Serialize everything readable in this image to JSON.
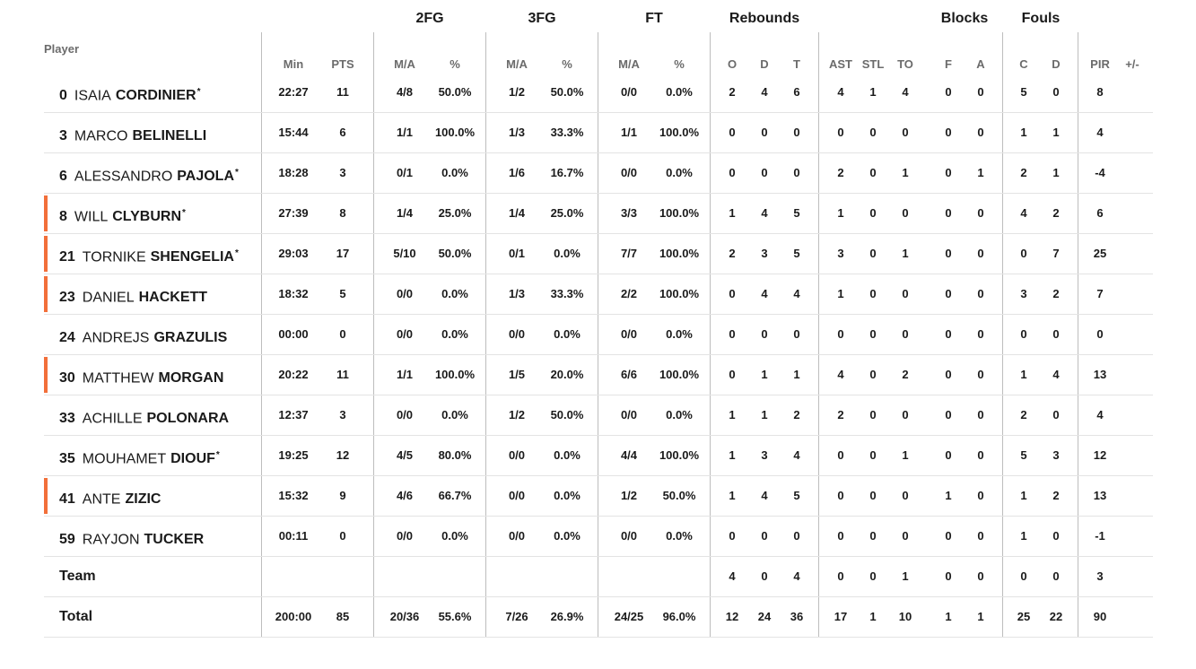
{
  "header": {
    "player_label": "Player",
    "groups": [
      "2FG",
      "3FG",
      "FT",
      "Rebounds",
      "Blocks",
      "Fouls"
    ],
    "columns": [
      "Min",
      "PTS",
      "M/A",
      "%",
      "M/A",
      "%",
      "M/A",
      "%",
      "O",
      "D",
      "T",
      "AST",
      "STL",
      "TO",
      "F",
      "A",
      "C",
      "D",
      "PIR",
      "+/-"
    ]
  },
  "players": [
    {
      "num": "0",
      "first": "ISAIA",
      "last": "CORDINIER",
      "star": "*",
      "marked": false,
      "stats": [
        "22:27",
        "11",
        "4/8",
        "50.0%",
        "1/2",
        "50.0%",
        "0/0",
        "0.0%",
        "2",
        "4",
        "6",
        "4",
        "1",
        "4",
        "0",
        "0",
        "5",
        "0",
        "8",
        ""
      ]
    },
    {
      "num": "3",
      "first": "MARCO",
      "last": "BELINELLI",
      "star": "",
      "marked": false,
      "stats": [
        "15:44",
        "6",
        "1/1",
        "100.0%",
        "1/3",
        "33.3%",
        "1/1",
        "100.0%",
        "0",
        "0",
        "0",
        "0",
        "0",
        "0",
        "0",
        "0",
        "1",
        "1",
        "4",
        ""
      ]
    },
    {
      "num": "6",
      "first": "ALESSANDRO",
      "last": "PAJOLA",
      "star": "*",
      "marked": false,
      "stats": [
        "18:28",
        "3",
        "0/1",
        "0.0%",
        "1/6",
        "16.7%",
        "0/0",
        "0.0%",
        "0",
        "0",
        "0",
        "2",
        "0",
        "1",
        "0",
        "1",
        "2",
        "1",
        "-4",
        ""
      ]
    },
    {
      "num": "8",
      "first": "WILL",
      "last": "CLYBURN",
      "star": "*",
      "marked": true,
      "stats": [
        "27:39",
        "8",
        "1/4",
        "25.0%",
        "1/4",
        "25.0%",
        "3/3",
        "100.0%",
        "1",
        "4",
        "5",
        "1",
        "0",
        "0",
        "0",
        "0",
        "4",
        "2",
        "6",
        ""
      ]
    },
    {
      "num": "21",
      "first": "TORNIKE",
      "last": "SHENGELIA",
      "star": "*",
      "marked": true,
      "stats": [
        "29:03",
        "17",
        "5/10",
        "50.0%",
        "0/1",
        "0.0%",
        "7/7",
        "100.0%",
        "2",
        "3",
        "5",
        "3",
        "0",
        "1",
        "0",
        "0",
        "0",
        "7",
        "25",
        ""
      ]
    },
    {
      "num": "23",
      "first": "DANIEL",
      "last": "HACKETT",
      "star": "",
      "marked": true,
      "stats": [
        "18:32",
        "5",
        "0/0",
        "0.0%",
        "1/3",
        "33.3%",
        "2/2",
        "100.0%",
        "0",
        "4",
        "4",
        "1",
        "0",
        "0",
        "0",
        "0",
        "3",
        "2",
        "7",
        ""
      ]
    },
    {
      "num": "24",
      "first": "ANDREJS",
      "last": "GRAZULIS",
      "star": "",
      "marked": false,
      "stats": [
        "00:00",
        "0",
        "0/0",
        "0.0%",
        "0/0",
        "0.0%",
        "0/0",
        "0.0%",
        "0",
        "0",
        "0",
        "0",
        "0",
        "0",
        "0",
        "0",
        "0",
        "0",
        "0",
        ""
      ]
    },
    {
      "num": "30",
      "first": "MATTHEW",
      "last": "MORGAN",
      "star": "",
      "marked": true,
      "stats": [
        "20:22",
        "11",
        "1/1",
        "100.0%",
        "1/5",
        "20.0%",
        "6/6",
        "100.0%",
        "0",
        "1",
        "1",
        "4",
        "0",
        "2",
        "0",
        "0",
        "1",
        "4",
        "13",
        ""
      ]
    },
    {
      "num": "33",
      "first": "ACHILLE",
      "last": "POLONARA",
      "star": "",
      "marked": false,
      "stats": [
        "12:37",
        "3",
        "0/0",
        "0.0%",
        "1/2",
        "50.0%",
        "0/0",
        "0.0%",
        "1",
        "1",
        "2",
        "2",
        "0",
        "0",
        "0",
        "0",
        "2",
        "0",
        "4",
        ""
      ]
    },
    {
      "num": "35",
      "first": "MOUHAMET",
      "last": "DIOUF",
      "star": "*",
      "marked": false,
      "stats": [
        "19:25",
        "12",
        "4/5",
        "80.0%",
        "0/0",
        "0.0%",
        "4/4",
        "100.0%",
        "1",
        "3",
        "4",
        "0",
        "0",
        "1",
        "0",
        "0",
        "5",
        "3",
        "12",
        ""
      ]
    },
    {
      "num": "41",
      "first": "ANTE",
      "last": "ZIZIC",
      "star": "",
      "marked": true,
      "stats": [
        "15:32",
        "9",
        "4/6",
        "66.7%",
        "0/0",
        "0.0%",
        "1/2",
        "50.0%",
        "1",
        "4",
        "5",
        "0",
        "0",
        "0",
        "1",
        "0",
        "1",
        "2",
        "13",
        ""
      ]
    },
    {
      "num": "59",
      "first": "RAYJON",
      "last": "TUCKER",
      "star": "",
      "marked": false,
      "stats": [
        "00:11",
        "0",
        "0/0",
        "0.0%",
        "0/0",
        "0.0%",
        "0/0",
        "0.0%",
        "0",
        "0",
        "0",
        "0",
        "0",
        "0",
        "0",
        "0",
        "1",
        "0",
        "-1",
        ""
      ]
    }
  ],
  "team": {
    "label": "Team",
    "stats": [
      "",
      "",
      "",
      "",
      "",
      "",
      "",
      "",
      "4",
      "0",
      "4",
      "0",
      "0",
      "1",
      "0",
      "0",
      "0",
      "0",
      "3",
      ""
    ]
  },
  "total": {
    "label": "Total",
    "stats": [
      "200:00",
      "85",
      "20/36",
      "55.6%",
      "7/26",
      "26.9%",
      "24/25",
      "96.0%",
      "12",
      "24",
      "36",
      "17",
      "1",
      "10",
      "1",
      "1",
      "25",
      "22",
      "90",
      ""
    ]
  },
  "colors": {
    "marker": "#f26f3a",
    "header_text": "#6b6b6b",
    "divider": "#bdbdbd",
    "row_line": "#e3e3e3"
  }
}
